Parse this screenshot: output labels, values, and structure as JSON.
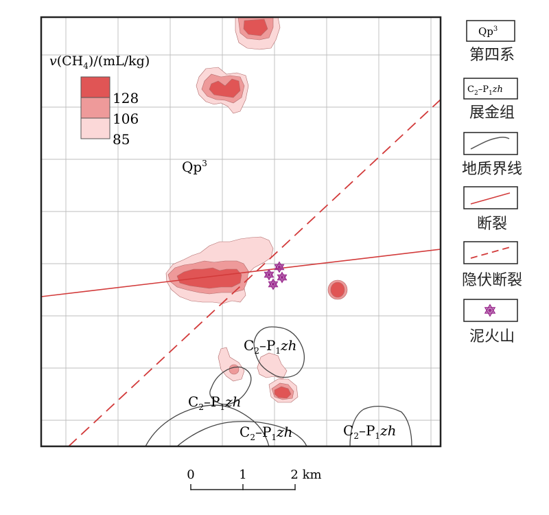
{
  "concentration_legend": {
    "title_var": "v",
    "title_rest": "(CH",
    "title_sub": "4",
    "title_unit": ")/(mL/kg)",
    "levels": [
      "128",
      "106",
      "85"
    ],
    "colors": [
      "#e05555",
      "#ee9a9a",
      "#fbd8d8"
    ]
  },
  "map_labels": {
    "qp_base": "Qp",
    "qp_sup": "3",
    "czh_c": "C",
    "czh_c_sub": "2",
    "czh_dash": "–P",
    "czh_p_sub": "1",
    "czh_zh": "zh"
  },
  "scale_bar": {
    "ticks": [
      "0",
      "1",
      "2 km"
    ]
  },
  "side_legend": [
    {
      "symbol": "Qp",
      "symbol_sup": "3",
      "label": "第四系"
    },
    {
      "symbol": "C2–P1zh",
      "label": "展金组"
    },
    {
      "symbol": "geologic-boundary",
      "label": "地质界线"
    },
    {
      "symbol": "fault",
      "label": "断裂"
    },
    {
      "symbol": "concealed-fault",
      "label": "隐伏断裂"
    },
    {
      "symbol": "mud-volcano",
      "label": "泥火山"
    }
  ],
  "colors": {
    "fault": "#d23a3a",
    "grid": "#bdbdbd",
    "boundary": "#444444",
    "volcano": "#9b2c8f"
  }
}
